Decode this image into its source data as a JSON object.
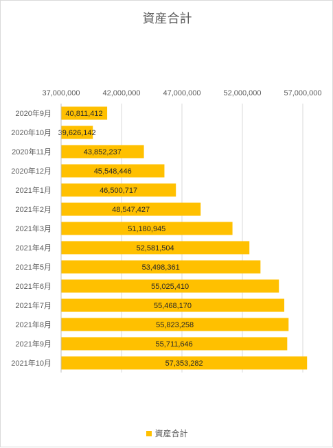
{
  "chart_data": {
    "type": "bar",
    "orientation": "horizontal",
    "title": "資産合計",
    "categories": [
      "2020年9月",
      "2020年10月",
      "2020年11月",
      "2020年12月",
      "2021年1月",
      "2021年2月",
      "2021年3月",
      "2021年4月",
      "2021年5月",
      "2021年6月",
      "2021年7月",
      "2021年8月",
      "2021年9月",
      "2021年10月"
    ],
    "series": [
      {
        "name": "資産合計",
        "color": "#ffc000",
        "values": [
          40811412,
          39626142,
          43852237,
          45548446,
          46500717,
          48547427,
          51180945,
          52581504,
          53498361,
          55025410,
          55468170,
          55823258,
          55711646,
          57353282
        ],
        "labels": [
          "40,811,412",
          "39,626,142",
          "43,852,237",
          "45,548,446",
          "46,500,717",
          "48,547,427",
          "51,180,945",
          "52,581,504",
          "53,498,361",
          "55,025,410",
          "55,468,170",
          "55,823,258",
          "55,711,646",
          "57,353,282"
        ]
      }
    ],
    "xlim": [
      37000000,
      57000000
    ],
    "x_ticks": [
      37000000,
      42000000,
      47000000,
      52000000,
      57000000
    ],
    "x_tick_labels": [
      "37,000,000",
      "42,000,000",
      "47,000,000",
      "52,000,000",
      "57,000,000"
    ],
    "x_axis_position": "top",
    "grid": "vertical",
    "legend_position": "bottom"
  }
}
